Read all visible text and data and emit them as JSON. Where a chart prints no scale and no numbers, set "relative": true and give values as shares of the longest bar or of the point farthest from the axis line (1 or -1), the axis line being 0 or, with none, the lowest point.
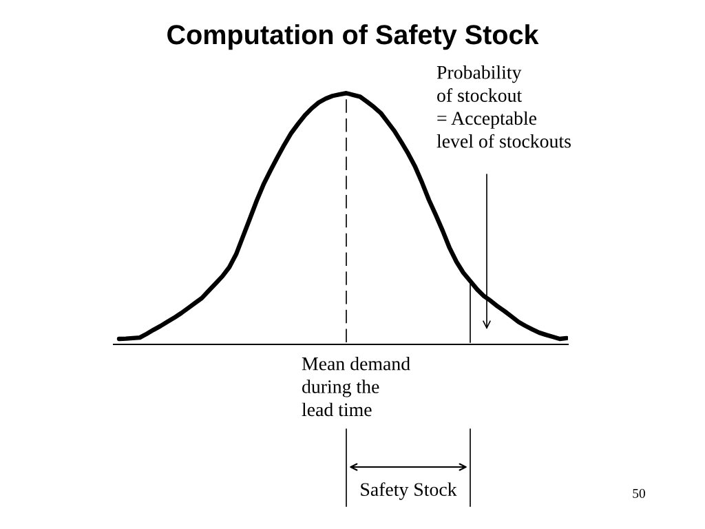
{
  "chart_data": {
    "type": "line",
    "title": "Computation of Safety Stock",
    "categories": [
      null,
      null,
      null,
      null,
      null,
      null,
      null,
      null,
      null,
      null,
      null,
      null,
      null,
      null,
      null,
      null,
      null,
      null,
      null,
      null,
      null,
      null,
      null,
      null,
      null,
      null,
      null,
      null,
      null,
      null,
      null,
      null,
      null,
      null,
      null,
      null,
      null,
      null,
      null,
      null,
      null,
      null,
      null,
      null,
      null,
      null,
      null,
      null,
      null,
      null,
      null,
      null,
      null,
      null,
      null,
      null,
      null,
      null,
      null,
      null,
      null,
      null,
      null,
      null,
      null,
      null
    ],
    "series": [
      {
        "color": "#000000",
        "values": [
          0.022,
          0.023,
          0.025,
          0.027,
          0.042,
          0.058,
          0.073,
          0.09,
          0.106,
          0.124,
          0.144,
          0.164,
          0.184,
          0.213,
          0.242,
          0.271,
          0.307,
          0.359,
          0.43,
          0.501,
          0.573,
          0.638,
          0.693,
          0.745,
          0.795,
          0.841,
          0.878,
          0.912,
          0.94,
          0.963,
          0.978,
          0.989,
          0.995,
          1.0,
          0.993,
          0.986,
          0.966,
          0.945,
          0.921,
          0.885,
          0.849,
          0.805,
          0.759,
          0.707,
          0.644,
          0.575,
          0.515,
          0.452,
          0.384,
          0.329,
          0.285,
          0.252,
          0.219,
          0.192,
          0.173,
          0.151,
          0.132,
          0.111,
          0.09,
          0.074,
          0.06,
          0.047,
          0.038,
          0.03,
          0.022,
          0.025
        ]
      }
    ],
    "relative": true,
    "annotations": [
      "Probability\nof stockout\n= Acceptable\nlevel of stockouts",
      "Mean demand\nduring the\nlead time",
      "Safety Stock",
      "50"
    ],
    "grid": false,
    "legend": false,
    "marker": "none",
    "line_style": "solid"
  }
}
